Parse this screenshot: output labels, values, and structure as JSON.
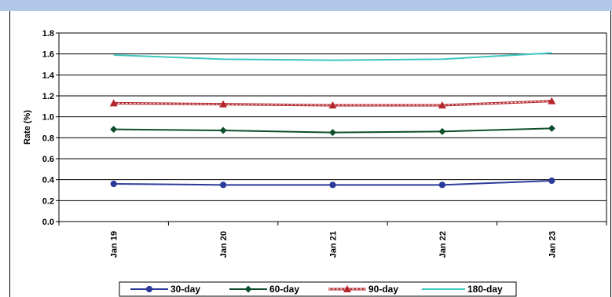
{
  "chart_data": {
    "type": "line",
    "categories": [
      "Jan 19",
      "Jan 20",
      "Jan 21",
      "Jan 22",
      "Jan 23"
    ],
    "ylabel": "Rate (%)",
    "xlabel": "",
    "ylim": [
      0,
      1.8
    ],
    "yticks": [
      "0.0",
      "0.2",
      "0.4",
      "0.6",
      "0.8",
      "1.0",
      "1.2",
      "1.4",
      "1.6",
      "1.8"
    ],
    "grid": true,
    "legend_position": "bottom",
    "series": [
      {
        "name": "30-day",
        "values": [
          0.36,
          0.35,
          0.35,
          0.35,
          0.39
        ],
        "color": "#2b3a9a",
        "marker": "circle",
        "dashed": false
      },
      {
        "name": "60-day",
        "values": [
          0.88,
          0.87,
          0.85,
          0.86,
          0.89
        ],
        "color": "#0d4f2b",
        "marker": "diamond",
        "dashed": false
      },
      {
        "name": "90-day",
        "values": [
          1.13,
          1.12,
          1.11,
          1.11,
          1.15
        ],
        "color": "#b3262c",
        "marker": "triangle",
        "dashed": true
      },
      {
        "name": "180-day",
        "values": [
          1.59,
          1.55,
          1.54,
          1.55,
          1.61
        ],
        "color": "#3ec6c0",
        "marker": "none",
        "dashed": false
      }
    ]
  }
}
